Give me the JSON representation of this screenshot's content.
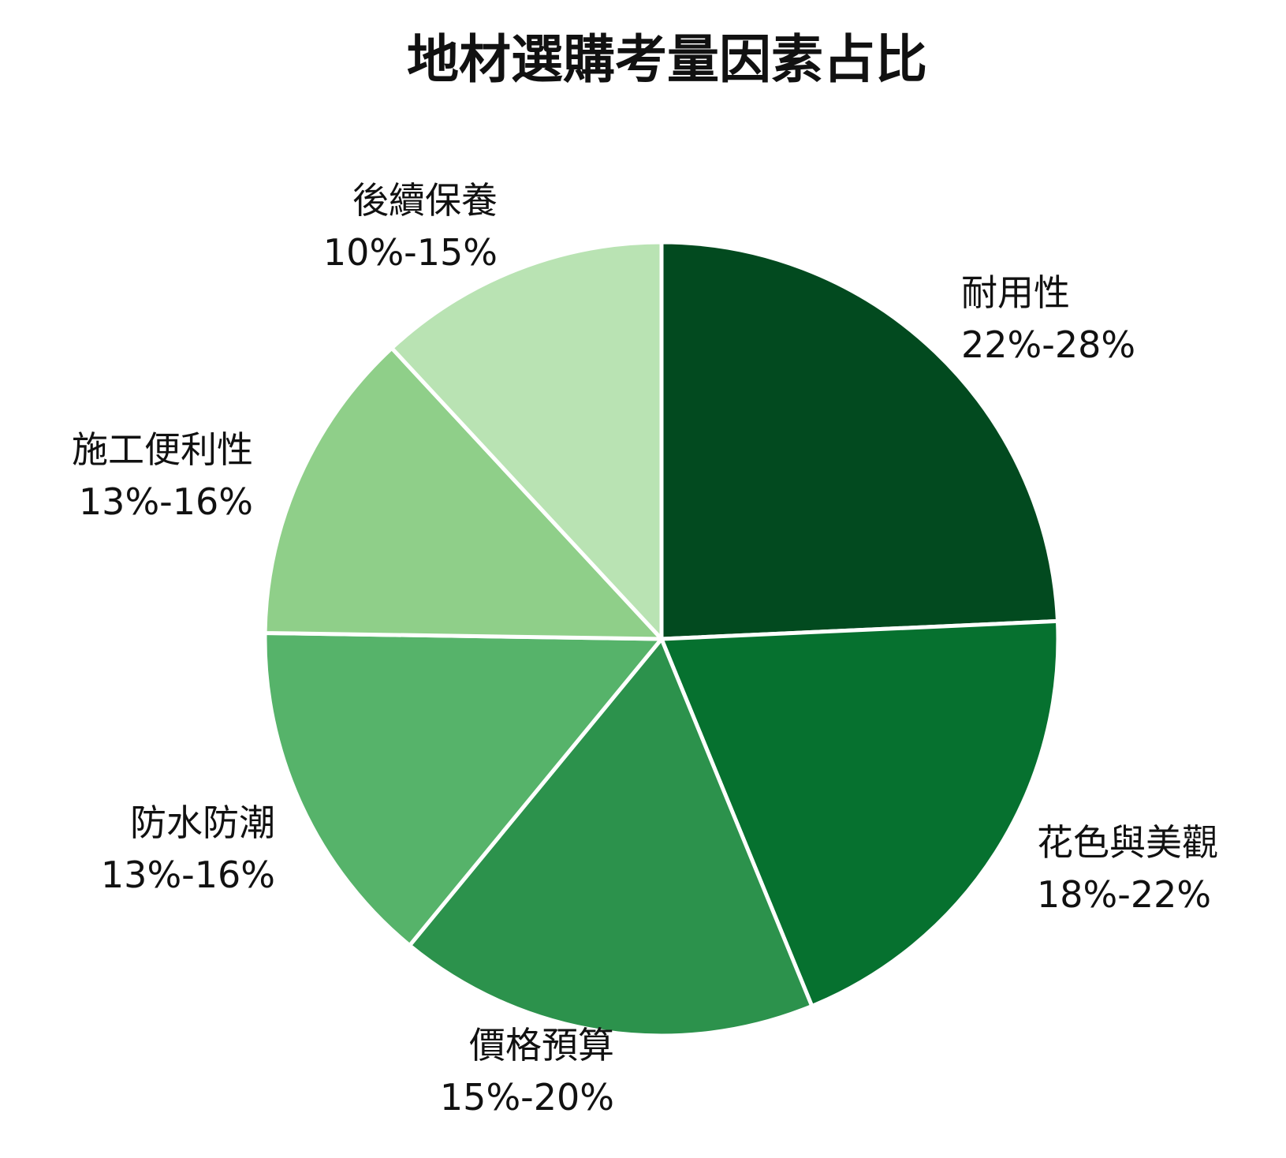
{
  "chart_data": {
    "type": "pie",
    "title": "地材選購考量因素占比",
    "start": "12 o'clock",
    "direction": "clockwise",
    "slice_border_color": "#ffffff",
    "slices": [
      {
        "label": "耐用性",
        "range_text": "22%-28%",
        "value": 25.5,
        "color": "#024a1f"
      },
      {
        "label": "花色與美觀",
        "range_text": "18%-22%",
        "value": 20.5,
        "color": "#06712f"
      },
      {
        "label": "價格預算",
        "range_text": "15%-20%",
        "value": 18.0,
        "color": "#2c924c"
      },
      {
        "label": "防水防潮",
        "range_text": "13%-16%",
        "value": 15.0,
        "color": "#56b36a"
      },
      {
        "label": "施工便利性",
        "range_text": "13%-16%",
        "value": 13.5,
        "color": "#8fcf89"
      },
      {
        "label": "後續保養",
        "range_text": "10%-15%",
        "value": 12.5,
        "color": "#b9e3b3"
      }
    ]
  }
}
